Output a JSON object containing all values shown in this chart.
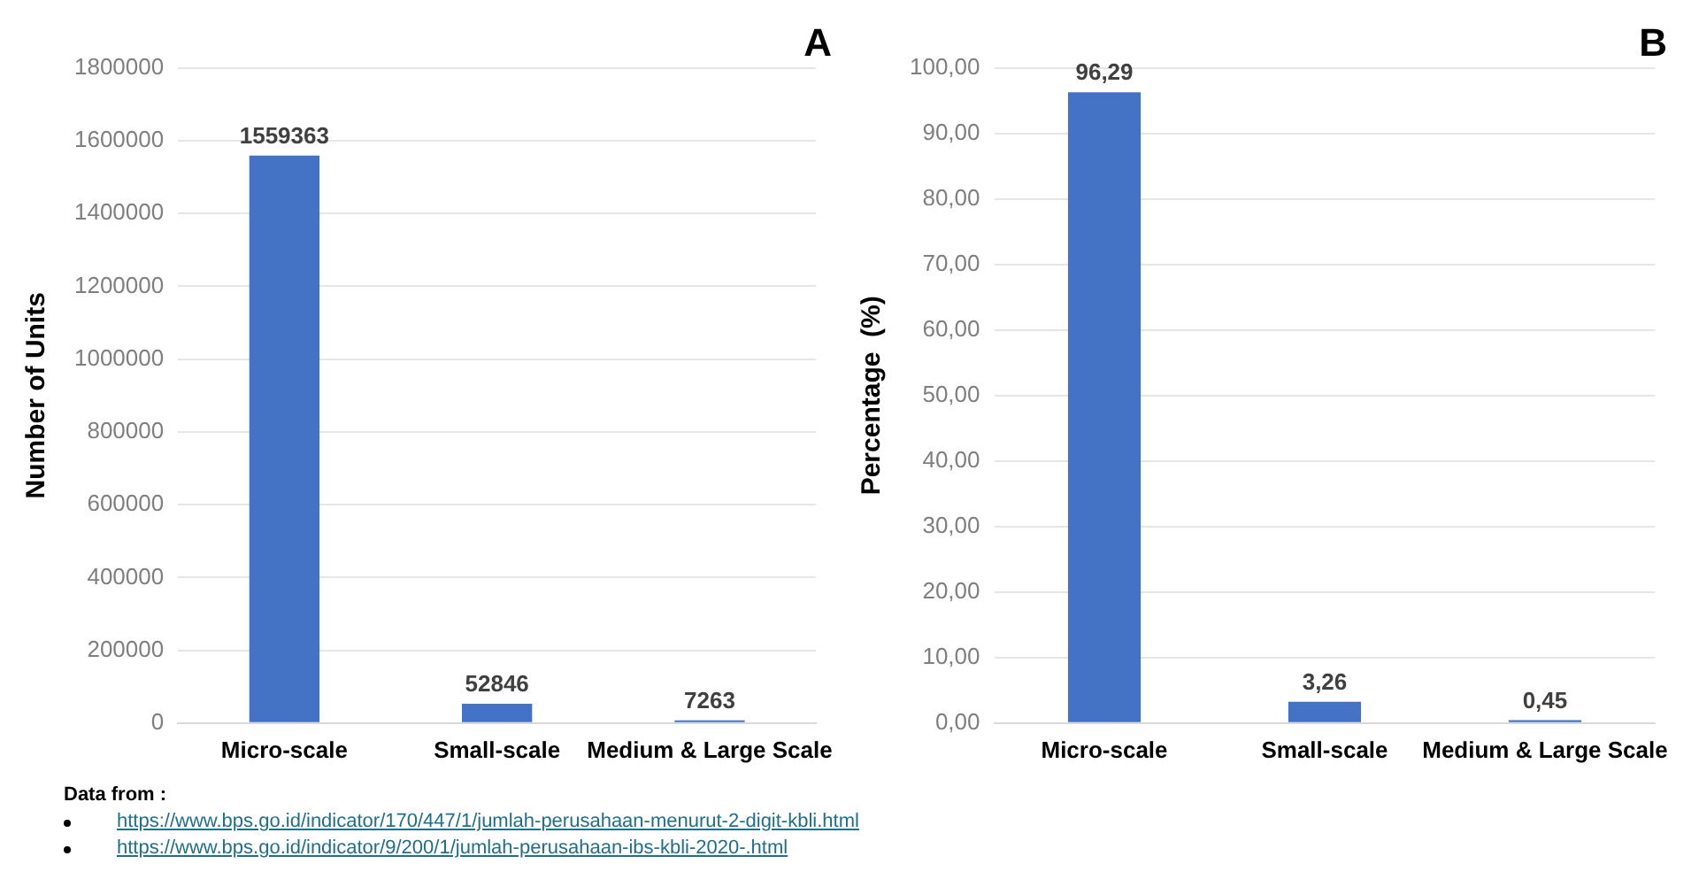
{
  "chart_data": [
    {
      "type": "bar",
      "title": "A",
      "ylabel": "Number of Units",
      "categories": [
        "Micro-scale",
        "Small-scale",
        "Medium & Large Scale"
      ],
      "values": [
        1559363,
        52846,
        7263
      ],
      "color": "#4472c4",
      "ylim": [
        0,
        1800000
      ],
      "yticks": [
        0,
        200000,
        400000,
        600000,
        800000,
        1000000,
        1200000,
        1400000,
        1600000,
        1800000
      ],
      "grid": "y",
      "data_labels": true,
      "annotations": [
        "Data from :",
        "https://www.bps.go.id/indicator/170/447/1/jumlah-perusahaan-menurut-2-digit-kbli.html",
        "https://www.bps.go.id/indicator/9/200/1/jumlah-perusahaan-ibs-kbli-2020-.html"
      ]
    },
    {
      "type": "bar",
      "title": "B",
      "ylabel": "Percentage  (%)",
      "categories": [
        "Micro-scale",
        "Small-scale",
        "Medium & Large Scale"
      ],
      "values": [
        96.29,
        3.26,
        0.45
      ],
      "value_labels": [
        "96,29",
        "3,26",
        "0,45"
      ],
      "color": "#4472c4",
      "ylim": [
        0,
        100
      ],
      "yticks": [
        {
          "value": 0,
          "label": "0,00"
        },
        {
          "value": 10,
          "label": "10,00"
        },
        {
          "value": 20,
          "label": "20,00"
        },
        {
          "value": 30,
          "label": "30,00"
        },
        {
          "value": 40,
          "label": "40,00"
        },
        {
          "value": 50,
          "label": "50,00"
        },
        {
          "value": 60,
          "label": "60,00"
        },
        {
          "value": 70,
          "label": "70,00"
        },
        {
          "value": 80,
          "label": "80,00"
        },
        {
          "value": 90,
          "label": "90,00"
        },
        {
          "value": 100,
          "label": "100,00"
        }
      ],
      "grid": "y"
    }
  ]
}
